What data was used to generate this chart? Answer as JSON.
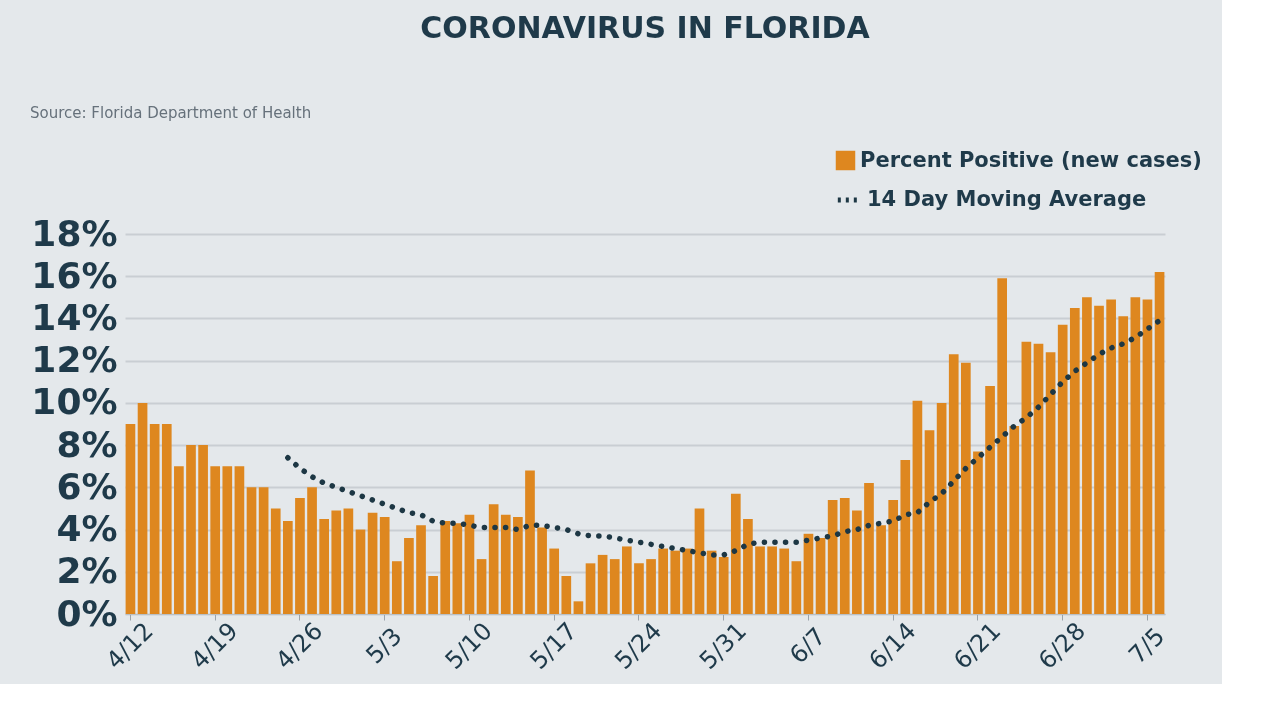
{
  "chart_data": {
    "type": "bar",
    "title": "CORONAVIRUS IN FLORIDA",
    "annotations": [
      "Source: Florida Department of Health"
    ],
    "categories": [
      "4/12",
      null,
      null,
      null,
      null,
      null,
      null,
      "4/19",
      null,
      null,
      null,
      null,
      null,
      null,
      "4/26",
      null,
      null,
      null,
      null,
      null,
      null,
      "5/3",
      null,
      null,
      null,
      null,
      null,
      null,
      "5/10",
      null,
      null,
      null,
      null,
      null,
      null,
      "5/17",
      null,
      null,
      null,
      null,
      null,
      null,
      "5/24",
      null,
      null,
      null,
      null,
      null,
      null,
      "5/31",
      null,
      null,
      null,
      null,
      null,
      null,
      "6/7",
      null,
      null,
      null,
      null,
      null,
      null,
      "6/14",
      null,
      null,
      null,
      null,
      null,
      null,
      "6/21",
      null,
      null,
      null,
      null,
      null,
      null,
      "6/28",
      null,
      null,
      null,
      null,
      null,
      null,
      "7/5",
      null
    ],
    "series": [
      {
        "name": "Percent Positive (new cases)",
        "color": "#de871f",
        "values": [
          9.0,
          10.0,
          9.0,
          9.0,
          7.0,
          8.0,
          8.0,
          7.0,
          7.0,
          7.0,
          6.0,
          6.0,
          5.0,
          4.4,
          5.5,
          6.0,
          4.5,
          4.9,
          5.0,
          4.0,
          4.8,
          4.6,
          2.5,
          3.6,
          4.2,
          1.8,
          4.4,
          4.3,
          4.7,
          2.6,
          5.2,
          4.7,
          4.6,
          6.8,
          4.1,
          3.1,
          1.8,
          0.6,
          2.4,
          2.8,
          2.6,
          3.2,
          2.4,
          2.6,
          3.1,
          3.0,
          3.1,
          5.0,
          3.0,
          2.7,
          5.7,
          4.5,
          3.2,
          3.2,
          3.1,
          2.5,
          3.8,
          3.6,
          5.4,
          5.5,
          4.9,
          6.2,
          4.2,
          5.4,
          7.3,
          10.1,
          8.7,
          10.0,
          12.3,
          11.9,
          7.7,
          10.8,
          15.9,
          8.9,
          12.9,
          12.8,
          12.4,
          13.7,
          14.5,
          15.0,
          14.6,
          14.9,
          14.1,
          15.0,
          14.9,
          16.2
        ]
      },
      {
        "name": "14 Day Moving Average",
        "type": "line",
        "color": "#1d3744",
        "line_style": "dotted",
        "values": [
          null,
          null,
          null,
          null,
          null,
          null,
          null,
          null,
          null,
          null,
          null,
          null,
          null,
          7.4,
          6.9,
          6.5,
          6.2,
          6.0,
          5.8,
          5.6,
          5.4,
          5.2,
          5.0,
          4.8,
          4.7,
          4.4,
          4.3,
          4.3,
          4.2,
          4.1,
          4.1,
          4.1,
          4.0,
          4.2,
          4.2,
          4.1,
          4.0,
          3.8,
          3.7,
          3.7,
          3.6,
          3.5,
          3.4,
          3.3,
          3.2,
          3.1,
          3.0,
          2.9,
          2.8,
          2.8,
          3.0,
          3.3,
          3.4,
          3.4,
          3.4,
          3.4,
          3.5,
          3.6,
          3.7,
          3.9,
          4.0,
          4.2,
          4.3,
          4.4,
          4.7,
          4.8,
          5.3,
          5.7,
          6.3,
          6.9,
          7.4,
          7.9,
          8.4,
          8.9,
          9.3,
          9.8,
          10.4,
          11.0,
          11.5,
          11.9,
          12.3,
          12.6,
          12.8,
          13.1,
          13.5,
          13.9
        ]
      }
    ],
    "ylim": [
      0,
      18
    ],
    "yticks": [
      {
        "value": 0,
        "label": "0%"
      },
      {
        "value": 2,
        "label": "2%"
      },
      {
        "value": 4,
        "label": "4%"
      },
      {
        "value": 6,
        "label": "6%"
      },
      {
        "value": 8,
        "label": "8%"
      },
      {
        "value": 10,
        "label": "10%"
      },
      {
        "value": 12,
        "label": "12%"
      },
      {
        "value": 14,
        "label": "14%"
      },
      {
        "value": 16,
        "label": "16%"
      },
      {
        "value": 18,
        "label": "18%"
      }
    ],
    "grid": "y",
    "legend": "top right"
  }
}
